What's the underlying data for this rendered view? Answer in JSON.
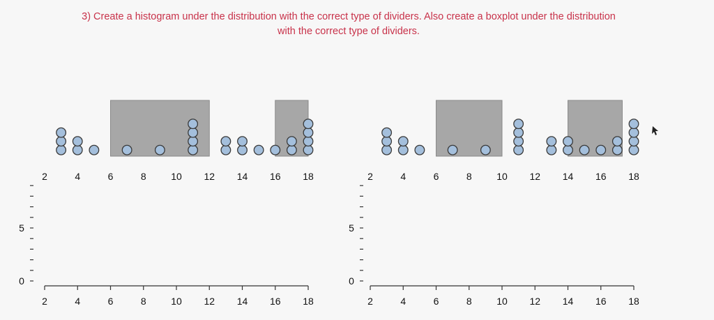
{
  "question": {
    "line1": "3) Create a histogram under the distribution with the correct type of dividers. Also create a boxplot under the distribution",
    "line2": "with the correct type of dividers."
  },
  "colors": {
    "question_text": "#c8324a",
    "dot_fill": "#a4bfdc",
    "dot_stroke": "#3a3a3a",
    "bar_fill": "#a7a7a7",
    "axis": "#333333"
  },
  "chart_data": [
    {
      "type": "dotplot",
      "title": "",
      "xlim": [
        1.5,
        18.5
      ],
      "x_ticks": [
        2,
        4,
        6,
        8,
        10,
        12,
        14,
        16,
        18
      ],
      "points": [
        {
          "x": 3,
          "count": 3
        },
        {
          "x": 4,
          "count": 2
        },
        {
          "x": 5,
          "count": 1
        },
        {
          "x": 7,
          "count": 1
        },
        {
          "x": 9,
          "count": 1
        },
        {
          "x": 11,
          "count": 4
        },
        {
          "x": 13,
          "count": 2
        },
        {
          "x": 14,
          "count": 2
        },
        {
          "x": 15,
          "count": 1
        },
        {
          "x": 16,
          "count": 1
        },
        {
          "x": 17,
          "count": 2
        },
        {
          "x": 18,
          "count": 4
        }
      ],
      "shaded_regions": [
        {
          "from": 6,
          "to": 12
        },
        {
          "from": 16,
          "to": 18
        }
      ]
    },
    {
      "type": "dotplot",
      "title": "",
      "xlim": [
        1.5,
        18.5
      ],
      "x_ticks": [
        2,
        4,
        6,
        8,
        10,
        12,
        14,
        16,
        18
      ],
      "points": [
        {
          "x": 3,
          "count": 3
        },
        {
          "x": 4,
          "count": 2
        },
        {
          "x": 5,
          "count": 1
        },
        {
          "x": 7,
          "count": 1
        },
        {
          "x": 9,
          "count": 1
        },
        {
          "x": 11,
          "count": 4
        },
        {
          "x": 13,
          "count": 2
        },
        {
          "x": 14,
          "count": 2
        },
        {
          "x": 15,
          "count": 1
        },
        {
          "x": 16,
          "count": 1
        },
        {
          "x": 17,
          "count": 2
        },
        {
          "x": 18,
          "count": 4
        }
      ],
      "shaded_regions": [
        {
          "from": 6,
          "to": 10
        },
        {
          "from": 14,
          "to": 17.3
        }
      ]
    },
    {
      "type": "bar",
      "title": "",
      "xlim": [
        1.5,
        18.5
      ],
      "ylim": [
        0,
        9
      ],
      "x_ticks": [
        2,
        4,
        6,
        8,
        10,
        12,
        14,
        16,
        18
      ],
      "y_ticks": [
        0,
        5
      ],
      "values": []
    },
    {
      "type": "bar",
      "title": "",
      "xlim": [
        1.5,
        18.5
      ],
      "ylim": [
        0,
        9
      ],
      "x_ticks": [
        2,
        4,
        6,
        8,
        10,
        12,
        14,
        16,
        18
      ],
      "y_ticks": [
        0,
        5
      ],
      "values": []
    }
  ]
}
